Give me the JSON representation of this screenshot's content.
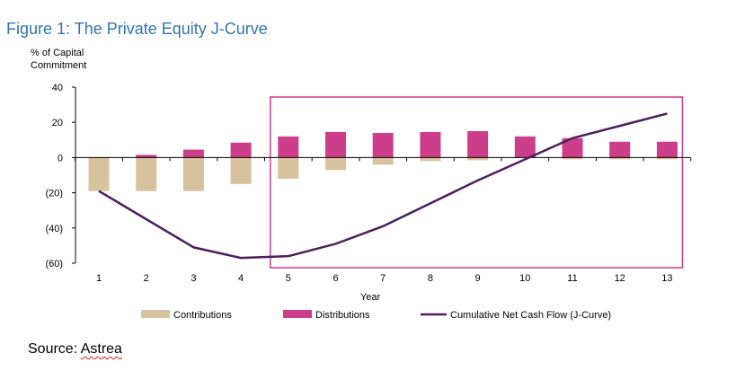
{
  "figure_title": "Figure 1: The Private Equity J-Curve",
  "source": {
    "prefix": "Source: ",
    "name": "Astrea"
  },
  "chart_data": {
    "type": "bar",
    "ylabel": [
      "% of Capital",
      "Commitment"
    ],
    "xlabel": "Year",
    "categories": [
      "1",
      "2",
      "3",
      "4",
      "5",
      "6",
      "7",
      "8",
      "9",
      "10",
      "11",
      "12",
      "13"
    ],
    "ylim": [
      -60,
      40
    ],
    "yticks": [
      40,
      20,
      0,
      -20,
      -40,
      -60
    ],
    "ytick_labels": [
      "40",
      "20",
      "0",
      "(20)",
      "(40)",
      "(60)"
    ],
    "series": [
      {
        "name": "Contributions",
        "kind": "bar",
        "color": "#d6c29c",
        "values": [
          -19,
          -19,
          -19,
          -15,
          -12,
          -7,
          -4,
          -2,
          -1.5,
          0,
          -1,
          -1,
          -1
        ]
      },
      {
        "name": "Distributions",
        "kind": "bar",
        "color": "#cc3d8a",
        "values": [
          0,
          1.5,
          4.5,
          8.5,
          12,
          14.5,
          14,
          14.5,
          15,
          12,
          11,
          9,
          9
        ]
      },
      {
        "name": "Cumulative Net Cash Flow (J-Curve)",
        "kind": "line",
        "color": "#4b1f5c",
        "values": [
          -19,
          -35,
          -51,
          -57,
          -56,
          -49,
          -39,
          -26,
          -13,
          -1,
          11,
          18,
          25
        ]
      }
    ],
    "highlight_range": [
      "5",
      "13"
    ],
    "highlight_color": "#cc3d8a",
    "legend_position": "bottom",
    "grid": false
  }
}
